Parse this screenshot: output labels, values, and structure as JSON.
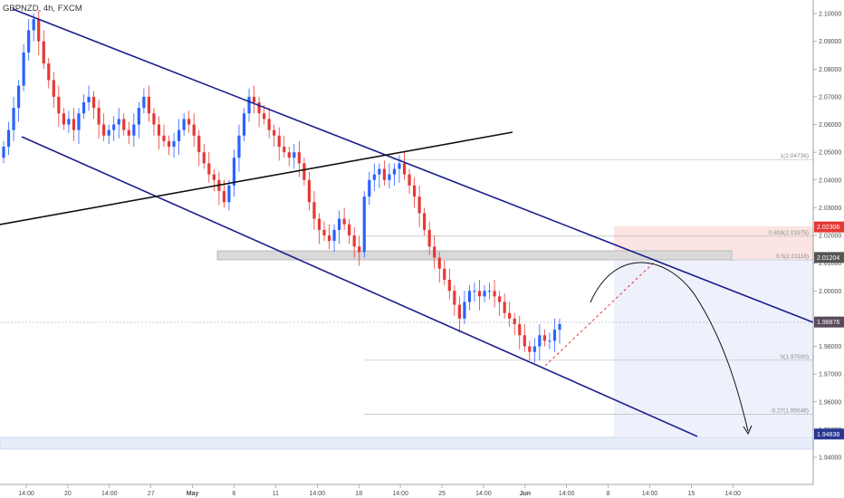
{
  "chart_data": {
    "type": "candlestick",
    "symbol": "GBPNZD, 4h, FXCM",
    "y_axis": {
      "min": 1.935,
      "max": 2.105,
      "position": "right",
      "ticks": [
        "2.10000",
        "2.09000",
        "2.08000",
        "2.07000",
        "2.06000",
        "2.05000",
        "2.04000",
        "2.03000",
        "2.02000",
        "2.01000",
        "2.00000",
        "1.99000",
        "1.98000",
        "1.97000",
        "1.96000",
        "1.95000",
        "1.94000"
      ]
    },
    "x_axis": {
      "tick_labels": [
        "14:00",
        "20",
        "14:00",
        "27",
        "May",
        "6",
        "11",
        "14:00",
        "18",
        "14:00",
        "25",
        "14:00",
        "Jun",
        "14:00",
        "8",
        "14:00",
        "15",
        "14:00"
      ]
    },
    "price_tags": [
      {
        "label": "2.02306",
        "value": 2.02306,
        "color": "#e53935"
      },
      {
        "label": "2.01204",
        "value": 2.01204,
        "color": "#555555"
      },
      {
        "label": "1.98876",
        "value": 1.98876,
        "color": "#5b4a5a"
      },
      {
        "label": "1.94838",
        "value": 1.94838,
        "color": "#283593"
      }
    ],
    "fib_levels": [
      {
        "label": "1(2.04736)",
        "value": 2.04736
      },
      {
        "label": "0.618(2.01975)",
        "value": 2.01975
      },
      {
        "label": "0.5(2.01118)",
        "value": 2.01118
      },
      {
        "label": "0(1.97500)",
        "value": 1.975
      },
      {
        "label": "-0.27(1.95546)",
        "value": 1.95546
      }
    ],
    "last_price": 1.98876,
    "candles_close_sample": [
      2.052,
      2.058,
      2.066,
      2.074,
      2.086,
      2.094,
      2.098,
      2.09,
      2.082,
      2.076,
      2.07,
      2.064,
      2.06,
      2.062,
      2.058,
      2.064,
      2.068,
      2.07,
      2.066,
      2.06,
      2.056,
      2.058,
      2.06,
      2.062,
      2.058,
      2.056,
      2.06,
      2.066,
      2.07,
      2.064,
      2.06,
      2.056,
      2.054,
      2.052,
      2.054,
      2.058,
      2.062,
      2.06,
      2.056,
      2.05,
      2.046,
      2.042,
      2.04,
      2.036,
      2.032,
      2.038,
      2.048,
      2.056,
      2.064,
      2.07,
      2.068,
      2.064,
      2.062,
      2.058,
      2.056,
      2.052,
      2.05,
      2.048,
      2.05,
      2.046,
      2.04,
      2.032,
      2.026,
      2.022,
      2.02,
      2.018,
      2.022,
      2.026,
      2.024,
      2.02,
      2.016,
      2.014,
      2.034,
      2.04,
      2.042,
      2.044,
      2.04,
      2.042,
      2.044,
      2.046,
      2.042,
      2.038,
      2.034,
      2.028,
      2.022,
      2.016,
      2.012,
      2.008,
      2.004,
      2.0,
      1.995,
      1.99,
      1.996,
      2.0,
      2.0,
      1.998,
      2.0,
      2.0,
      1.998,
      1.996,
      1.992,
      1.99,
      1.988,
      1.984,
      1.98,
      1.978,
      1.98,
      1.984,
      1.982,
      1.982,
      1.986,
      1.988
    ]
  },
  "colors": {
    "up": "#2962ff",
    "down": "#e53935",
    "channel": "#1a1f8c",
    "trendline": "#111111",
    "zone_fill": "#d7d7d7",
    "target_fill": "#e3e8f9",
    "risk_fill": "#fbe4e1"
  }
}
